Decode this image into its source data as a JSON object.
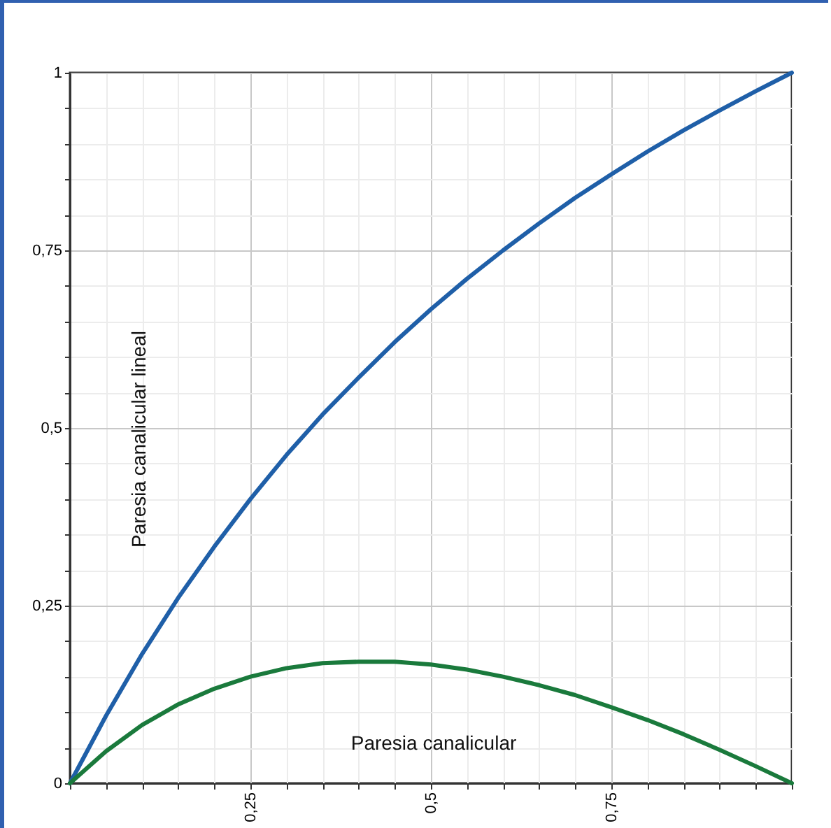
{
  "chart_data": {
    "type": "line",
    "x": [
      0,
      0.05,
      0.1,
      0.15,
      0.2,
      0.25,
      0.3,
      0.35,
      0.4,
      0.45,
      0.5,
      0.55,
      0.6,
      0.65,
      0.7,
      0.75,
      0.8,
      0.85,
      0.9,
      0.95,
      1
    ],
    "series": [
      {
        "name": "Paresia canalicular lineal",
        "color": "#1f5fa8",
        "values": [
          0,
          0.095,
          0.182,
          0.261,
          0.333,
          0.4,
          0.462,
          0.519,
          0.571,
          0.621,
          0.667,
          0.71,
          0.75,
          0.788,
          0.824,
          0.857,
          0.889,
          0.919,
          0.947,
          0.974,
          1
        ]
      },
      {
        "name": "Paresia canalicular",
        "color": "#1a7a3c",
        "values": [
          0,
          0.045,
          0.082,
          0.111,
          0.133,
          0.15,
          0.162,
          0.169,
          0.171,
          0.171,
          0.167,
          0.16,
          0.15,
          0.138,
          0.124,
          0.107,
          0.089,
          0.069,
          0.047,
          0.024,
          0
        ]
      }
    ],
    "xlim": [
      0,
      1
    ],
    "ylim": [
      0,
      1
    ],
    "xticks": [
      {
        "value": 0,
        "label": null
      },
      {
        "value": 0.05,
        "label": null
      },
      {
        "value": 0.1,
        "label": null
      },
      {
        "value": 0.15,
        "label": null
      },
      {
        "value": 0.2,
        "label": null
      },
      {
        "value": 0.25,
        "label": "0,25"
      },
      {
        "value": 0.3,
        "label": null
      },
      {
        "value": 0.35,
        "label": null
      },
      {
        "value": 0.4,
        "label": null
      },
      {
        "value": 0.45,
        "label": null
      },
      {
        "value": 0.5,
        "label": "0,5"
      },
      {
        "value": 0.55,
        "label": null
      },
      {
        "value": 0.6,
        "label": null
      },
      {
        "value": 0.65,
        "label": null
      },
      {
        "value": 0.7,
        "label": null
      },
      {
        "value": 0.75,
        "label": "0,75"
      },
      {
        "value": 0.8,
        "label": null
      },
      {
        "value": 0.85,
        "label": null
      },
      {
        "value": 0.9,
        "label": null
      },
      {
        "value": 0.95,
        "label": null
      },
      {
        "value": 1,
        "label": null
      }
    ],
    "yticks": [
      {
        "value": 0,
        "label": "0"
      },
      {
        "value": 0.05,
        "label": null
      },
      {
        "value": 0.1,
        "label": null
      },
      {
        "value": 0.15,
        "label": null
      },
      {
        "value": 0.2,
        "label": null
      },
      {
        "value": 0.25,
        "label": "0,25"
      },
      {
        "value": 0.3,
        "label": null
      },
      {
        "value": 0.35,
        "label": null
      },
      {
        "value": 0.4,
        "label": null
      },
      {
        "value": 0.45,
        "label": null
      },
      {
        "value": 0.5,
        "label": "0,5"
      },
      {
        "value": 0.55,
        "label": null
      },
      {
        "value": 0.6,
        "label": null
      },
      {
        "value": 0.65,
        "label": null
      },
      {
        "value": 0.7,
        "label": null
      },
      {
        "value": 0.75,
        "label": "0,75"
      },
      {
        "value": 0.8,
        "label": null
      },
      {
        "value": 0.85,
        "label": null
      },
      {
        "value": 0.9,
        "label": null
      },
      {
        "value": 0.95,
        "label": null
      },
      {
        "value": 1,
        "label": "1"
      }
    ],
    "grid": true,
    "marker": "none",
    "line_style": "solid"
  }
}
